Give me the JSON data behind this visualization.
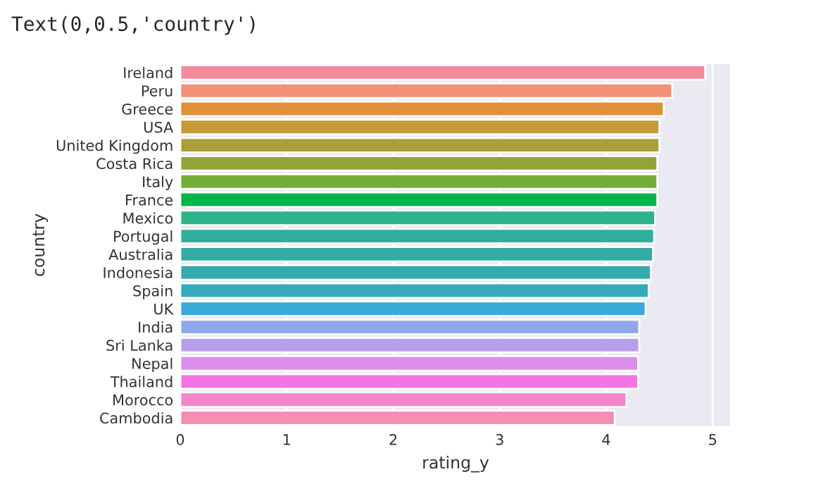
{
  "chart_data": {
    "type": "bar",
    "orientation": "horizontal",
    "xlabel": "rating_y",
    "ylabel": "country",
    "annotations": [
      "Text(0,0.5,'country')"
    ],
    "categories": [
      "Ireland",
      "Peru",
      "Greece",
      "USA",
      "United Kingdom",
      "Costa Rica",
      "Italy",
      "France",
      "Mexico",
      "Portugal",
      "Australia",
      "Indonesia",
      "Spain",
      "UK",
      "India",
      "Sri Lanka",
      "Nepal",
      "Thailand",
      "Morocco",
      "Cambodia"
    ],
    "values": [
      4.93,
      4.62,
      4.54,
      4.5,
      4.5,
      4.48,
      4.48,
      4.48,
      4.46,
      4.45,
      4.44,
      4.42,
      4.4,
      4.37,
      4.31,
      4.31,
      4.3,
      4.3,
      4.19,
      4.08
    ],
    "colors": [
      "#f48c9b",
      "#f29078",
      "#df9139",
      "#c49a37",
      "#a9a03a",
      "#90a535",
      "#74ad34",
      "#00b64a",
      "#30b38a",
      "#2fb09d",
      "#31ada5",
      "#33abad",
      "#35aaba",
      "#3aa9db",
      "#8fa9ec",
      "#b99ded",
      "#dc8eec",
      "#f474e4",
      "#f685c8",
      "#f58db4"
    ],
    "xlim": [
      0,
      5.17
    ],
    "xticks": [
      0,
      1,
      2,
      3,
      4,
      5
    ],
    "grid": "x"
  }
}
